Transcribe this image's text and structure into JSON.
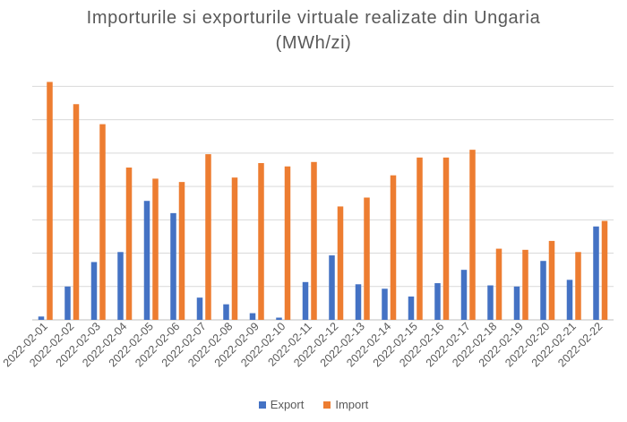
{
  "chart_data": {
    "type": "bar",
    "title": "Importurile si exporturile virtuale realizate din Ungaria",
    "subtitle": "(MWh/zi)",
    "xlabel": "",
    "ylabel": "",
    "categories": [
      "2022-02-01",
      "2022-02-02",
      "2022-02-03",
      "2022-02-04",
      "2022-02-05",
      "2022-02-06",
      "2022-02-07",
      "2022-02-08",
      "2022-02-09",
      "2022-02-10",
      "2022-02-11",
      "2022-02-12",
      "2022-02-13",
      "2022-02-14",
      "2022-02-15",
      "2022-02-16",
      "2022-02-17",
      "2022-02-18",
      "2022-02-19",
      "2022-02-20",
      "2022-02-21",
      "2022-02-22"
    ],
    "series": [
      {
        "name": "Export",
        "color": "#4472C4",
        "values": [
          0.3,
          3.0,
          5.2,
          6.1,
          10.7,
          9.6,
          2.0,
          1.4,
          0.6,
          0.2,
          3.4,
          5.8,
          3.2,
          2.8,
          2.1,
          3.3,
          4.5,
          3.1,
          3.0,
          5.3,
          3.6,
          8.4
        ]
      },
      {
        "name": "Import",
        "color": "#ED7D31",
        "values": [
          21.4,
          19.4,
          17.6,
          13.7,
          12.7,
          12.4,
          14.9,
          12.8,
          14.1,
          13.8,
          14.2,
          10.2,
          11.0,
          13.0,
          14.6,
          14.6,
          15.3,
          6.4,
          6.3,
          7.1,
          6.1,
          8.9
        ]
      }
    ],
    "ylim": [
      0,
      22
    ],
    "grid": true,
    "y_tick_labels_visible": false,
    "legend_position": "bottom"
  }
}
